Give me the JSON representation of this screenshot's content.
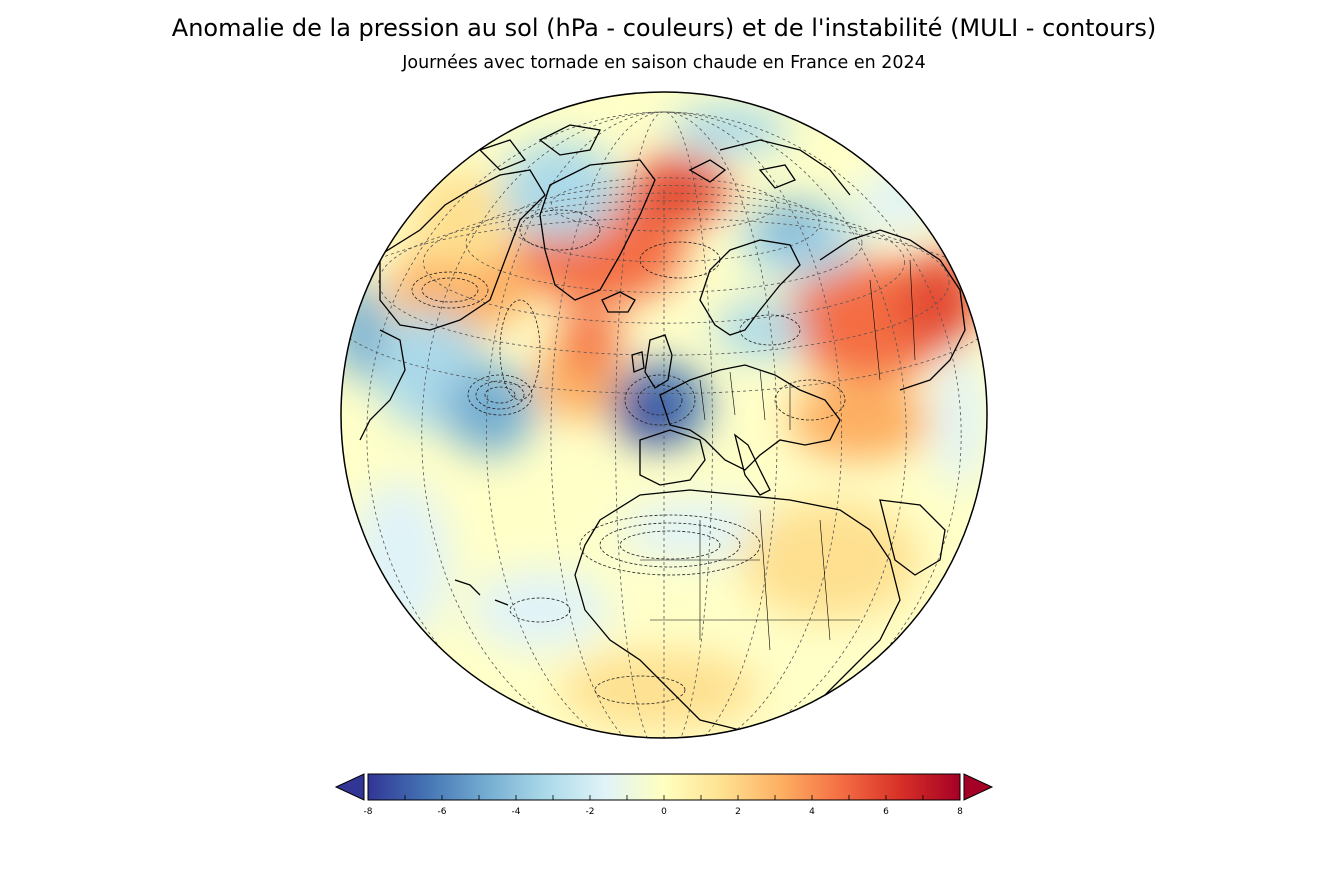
{
  "title": "Anomalie de la pression au sol (hPa - couleurs) et de l'instabilité (MULI - contours)",
  "subtitle": "Journées avec tornade en saison chaude en France en 2024",
  "colorbar": {
    "min": -8,
    "max": 8,
    "ticks": [
      "-8",
      "-6",
      "-4",
      "-2",
      "0",
      "2",
      "4",
      "6",
      "8"
    ],
    "extend": "both",
    "colors": [
      "#313695",
      "#4575b4",
      "#74add1",
      "#abd9e9",
      "#e0f3f8",
      "#ffffbf",
      "#fee090",
      "#fdae61",
      "#f46d43",
      "#d73027",
      "#a50026"
    ]
  },
  "map": {
    "projection": "orthographic",
    "shaded_field": "Anomalie de la pression au sol (hPa)",
    "contour_field": "MULI",
    "background_color": "#ffffc8",
    "coast_color": "#000000"
  }
}
